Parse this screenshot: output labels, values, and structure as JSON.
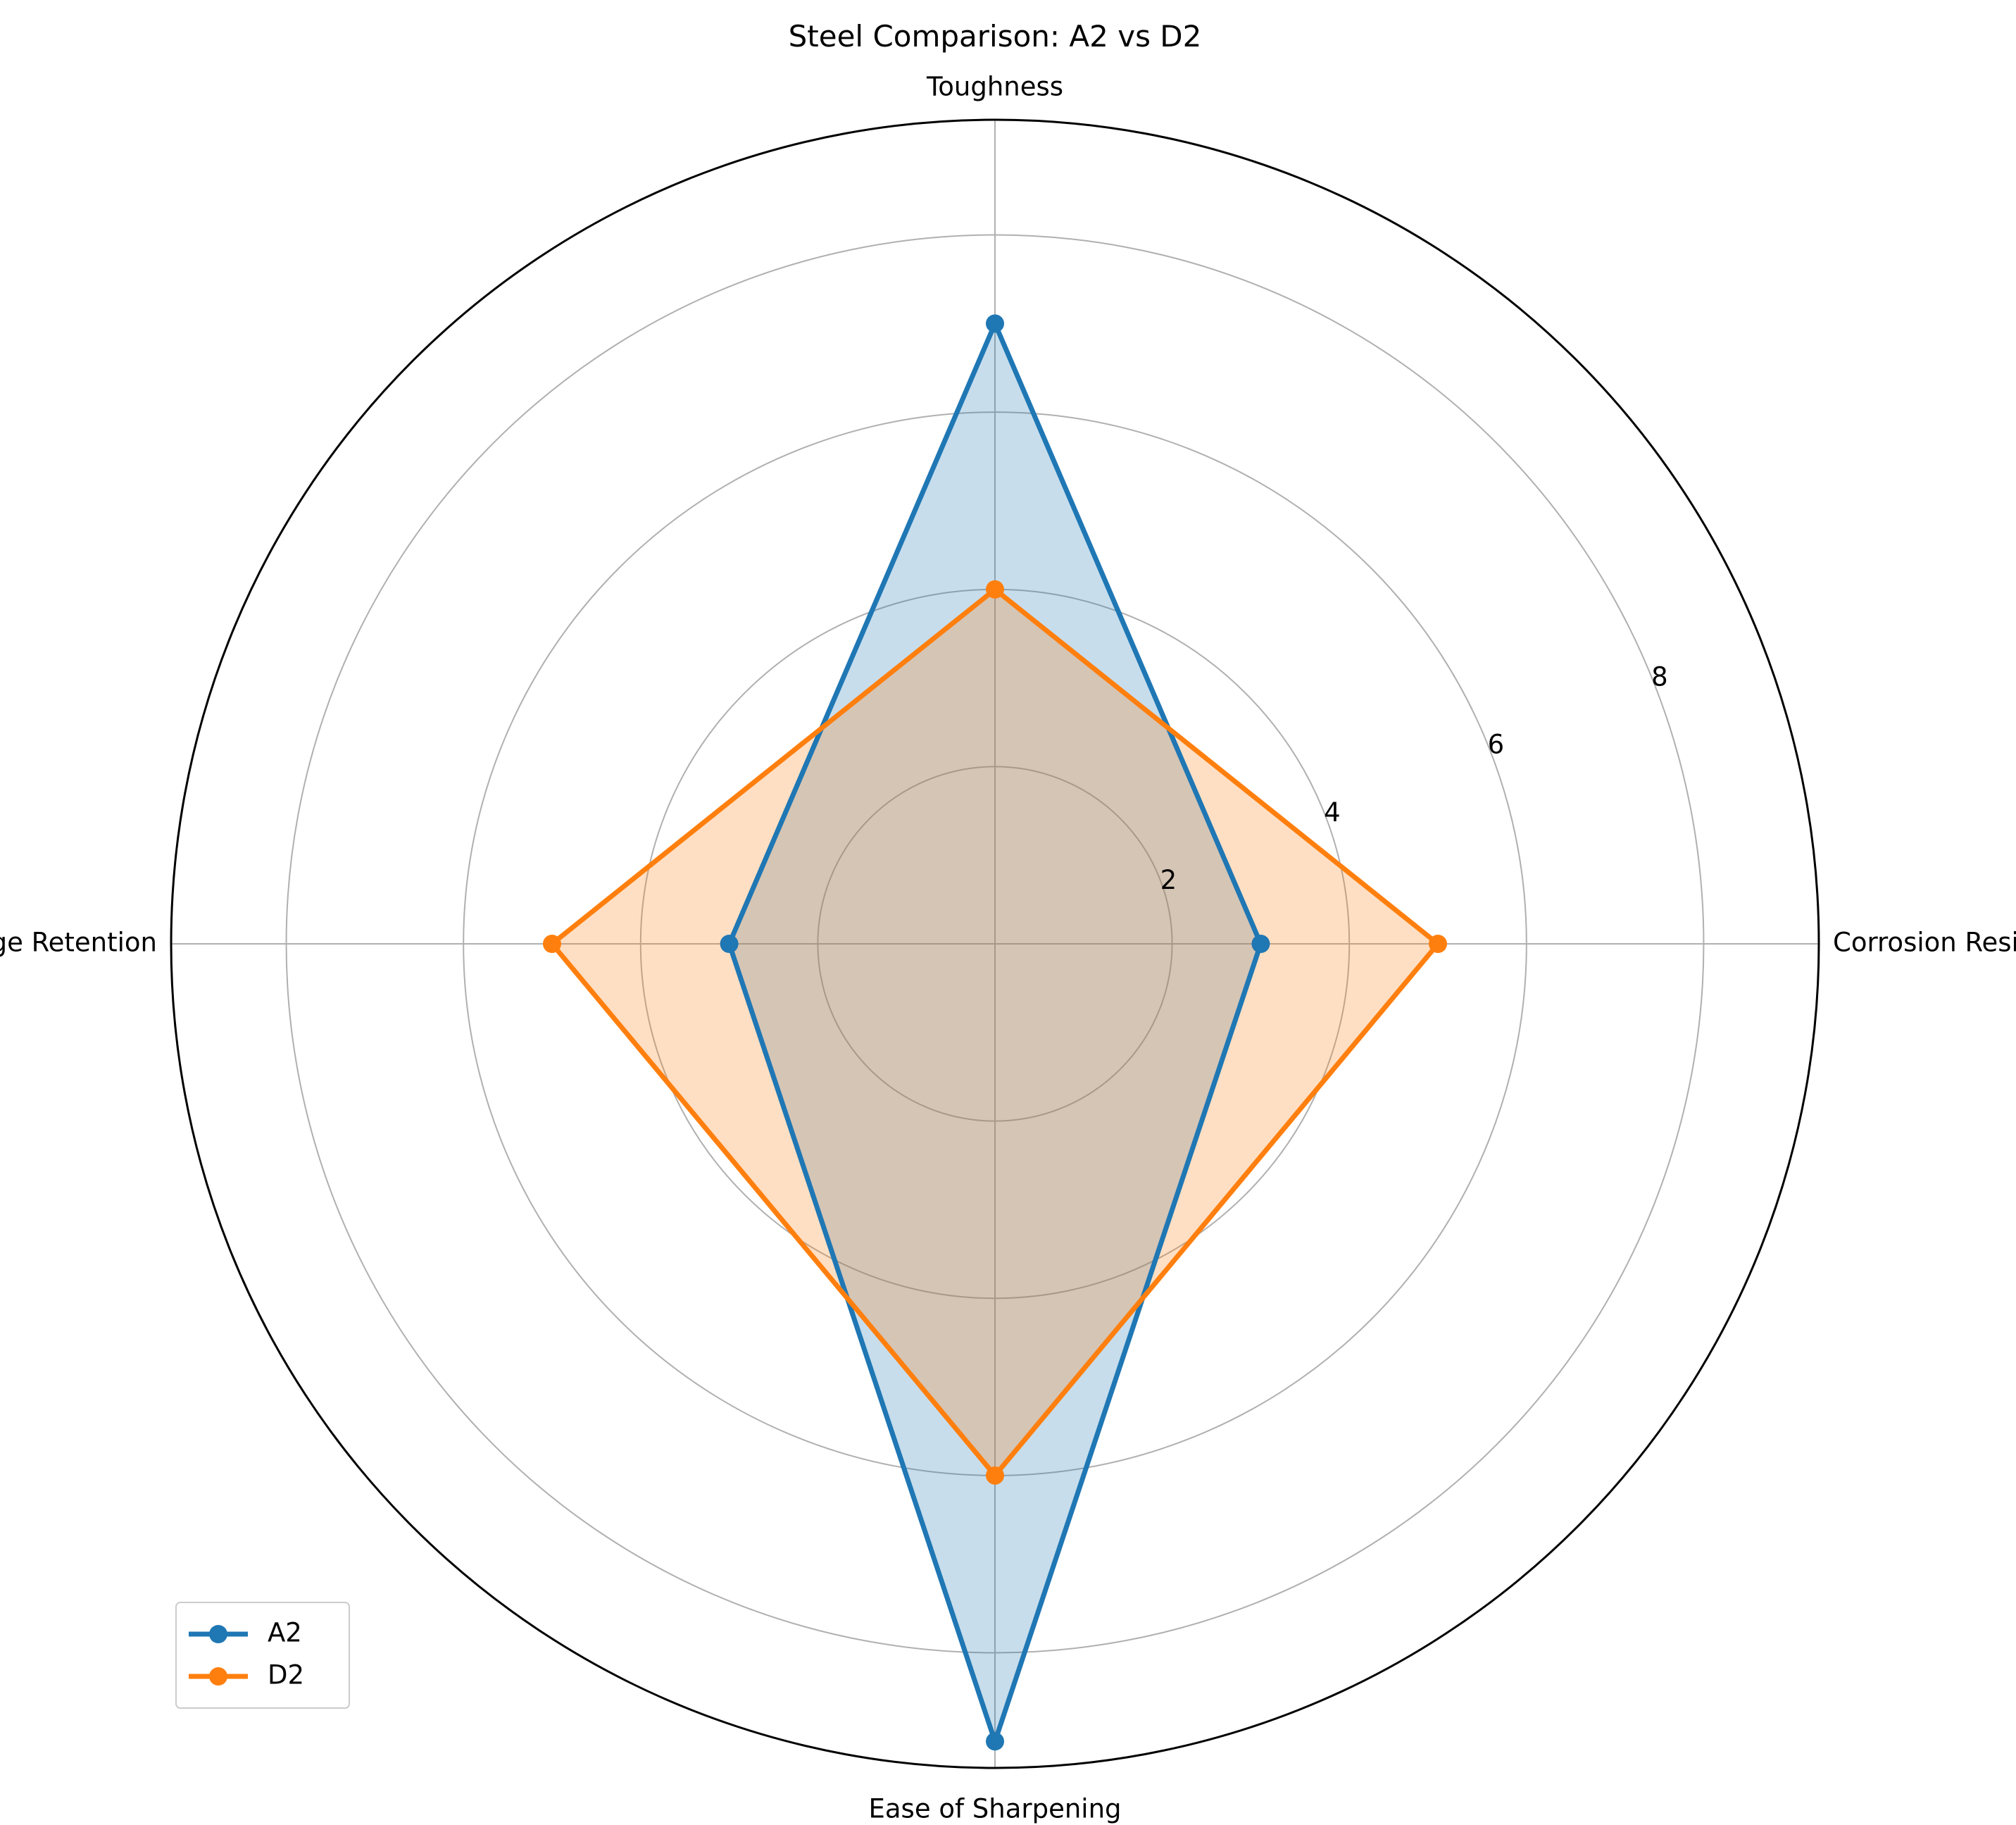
{
  "chart_data": {
    "type": "radar",
    "title": "Steel Comparison: A2 vs D2",
    "categories": [
      "Corrosion Resistance",
      "Toughness",
      "Edge Retention",
      "Ease of Sharpening"
    ],
    "series": [
      {
        "name": "A2",
        "values": [
          3,
          7,
          3,
          9
        ],
        "color": "#1f77b4"
      },
      {
        "name": "D2",
        "values": [
          5,
          4,
          5,
          6
        ],
        "color": "#ff7f0e"
      }
    ],
    "rlim": [
      0,
      9.3
    ],
    "r_ticks": [
      2,
      4,
      6,
      8
    ],
    "r_tick_labels": [
      "2",
      "4",
      "6",
      "8"
    ],
    "grid": true,
    "legend_position": "lower-left"
  }
}
